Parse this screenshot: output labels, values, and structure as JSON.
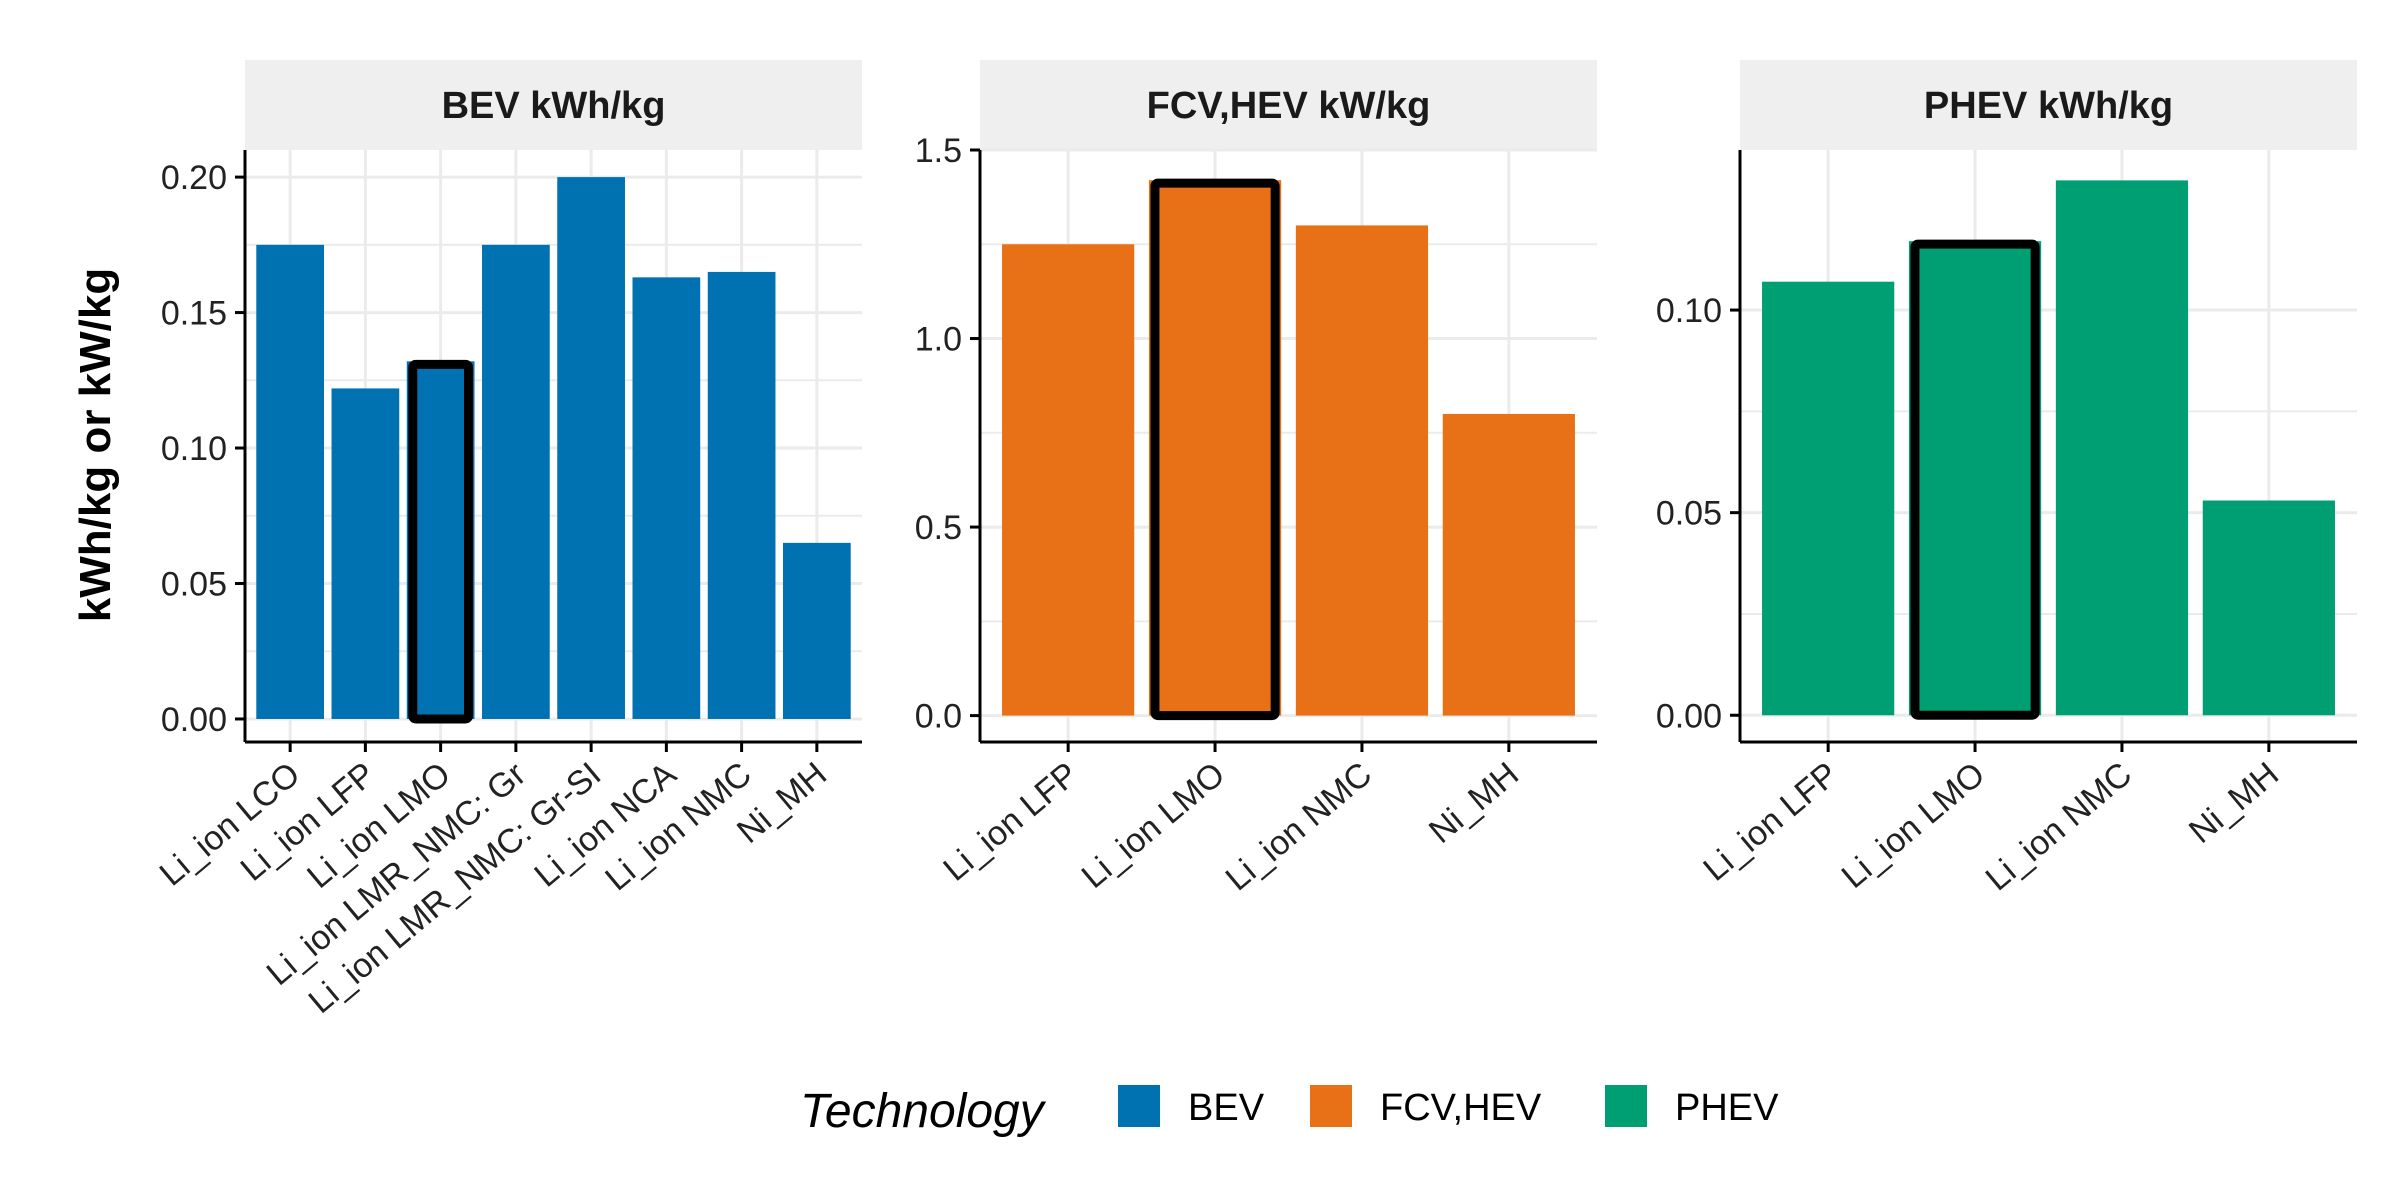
{
  "y_axis_label": "kWh/kg or kW/kg",
  "legend": {
    "title": "Technology",
    "items": [
      {
        "label": "BEV",
        "color": "#0072B2"
      },
      {
        "label": "FCV,HEV",
        "color": "#E87117"
      },
      {
        "label": "PHEV",
        "color": "#009E73"
      }
    ]
  },
  "colors": {
    "strip_background": "#EFEFEF",
    "grid": "#EBEBEB",
    "axis": "#000000",
    "highlight_outline": "#000000"
  },
  "chart_data": [
    {
      "type": "bar",
      "title": "BEV kWh/kg",
      "series_name": "BEV",
      "color": "#0072B2",
      "categories": [
        "Li_ion LCO",
        "Li_ion LFP",
        "Li_ion LMO",
        "Li_ion LMR_NMC: Gr",
        "Li_ion LMR_NMC: Gr-SI",
        "Li_ion NCA",
        "Li_ion NMC",
        "Ni_MH"
      ],
      "values": [
        0.175,
        0.122,
        0.132,
        0.175,
        0.2,
        0.163,
        0.165,
        0.065
      ],
      "highlighted": "Li_ion LMO",
      "ylim": [
        -0.0085,
        0.21
      ],
      "yticks": [
        0.0,
        0.05,
        0.1,
        0.15,
        0.2
      ],
      "ytick_labels": [
        "0.00",
        "0.05",
        "0.10",
        "0.15",
        "0.20"
      ],
      "grid": true
    },
    {
      "type": "bar",
      "title": "FCV,HEV kW/kg",
      "series_name": "FCV,HEV",
      "color": "#E87117",
      "categories": [
        "Li_ion LFP",
        "Li_ion LMO",
        "Li_ion NMC",
        "Ni_MH"
      ],
      "values": [
        1.25,
        1.42,
        1.3,
        0.8
      ],
      "highlighted": "Li_ion LMO",
      "ylim": [
        -0.07,
        1.5
      ],
      "yticks": [
        0.0,
        0.5,
        1.0,
        1.5
      ],
      "ytick_labels": [
        "0.0",
        "0.5",
        "1.0",
        "1.5"
      ],
      "grid": true
    },
    {
      "type": "bar",
      "title": "PHEV kWh/kg",
      "series_name": "PHEV",
      "color": "#009E73",
      "categories": [
        "Li_ion LFP",
        "Li_ion LMO",
        "Li_ion NMC",
        "Ni_MH"
      ],
      "values": [
        0.107,
        0.117,
        0.132,
        0.053
      ],
      "highlighted": "Li_ion LMO",
      "ylim": [
        -0.0066,
        0.1395
      ],
      "yticks": [
        0.0,
        0.05,
        0.1
      ],
      "ytick_labels": [
        "0.00",
        "0.05",
        "0.10"
      ],
      "grid": true
    }
  ]
}
